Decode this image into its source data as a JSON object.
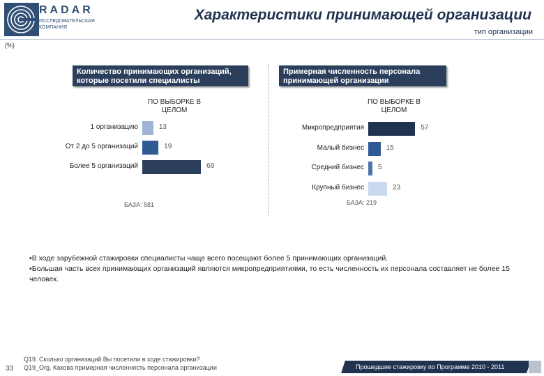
{
  "header": {
    "logo_word": "RADAR",
    "logo_sub": "ИССЛЕДОВАТЕЛЬСКАЯ КОМПАНИЯ",
    "title": "Характеристики принимающей организации",
    "subtitle": "тип организации",
    "unit_note": "(%)"
  },
  "chart_data": [
    {
      "type": "bar",
      "orientation": "horizontal",
      "title": "Количество принимающих организаций, которые посетили специалисты",
      "series_label": "ПО ВЫБОРКЕ В ЦЕЛОМ",
      "categories": [
        "1 организацию",
        "От 2 до 5 организаций",
        "Более 5 организаций"
      ],
      "values": [
        13,
        19,
        69
      ],
      "colors": [
        "#9db4d6",
        "#2f5a94",
        "#2b3f5c"
      ],
      "xlim": [
        0,
        100
      ],
      "base": "БАЗА: 581"
    },
    {
      "type": "bar",
      "orientation": "horizontal",
      "title": "Примерная численность персонала принимающей организации",
      "series_label": "ПО ВЫБОРКЕ В ЦЕЛОМ",
      "categories": [
        "Микропредприятия",
        "Малый бизнес",
        "Средний бизнес",
        "Крупный бизнес"
      ],
      "values": [
        57,
        15,
        5,
        23
      ],
      "colors": [
        "#1f3350",
        "#2f5a94",
        "#4f74aa",
        "#c9d9ee"
      ],
      "xlim": [
        0,
        100
      ],
      "base": "БАЗА: 219"
    }
  ],
  "notes": [
    "▪В ходе зарубежной стажировки специалисты чаще всего посещают более 5 принимающих организаций.",
    "▪Большая часть всех принимающих организаций являются микропредприятиями, то есть численность их персонала составляет не более 15 человек."
  ],
  "footer": {
    "page_number": "33",
    "question_1": "Q19. Сколько организаций Вы посетили в ходе стажировки?",
    "question_2": "Q19_Org. Какова примерная численность персонала организации",
    "banner": "Прошедшие стажировку по Программе 2010 - 2011"
  },
  "colors": {
    "navy": "#1f3350",
    "panel_head": "#2b3f5c"
  }
}
